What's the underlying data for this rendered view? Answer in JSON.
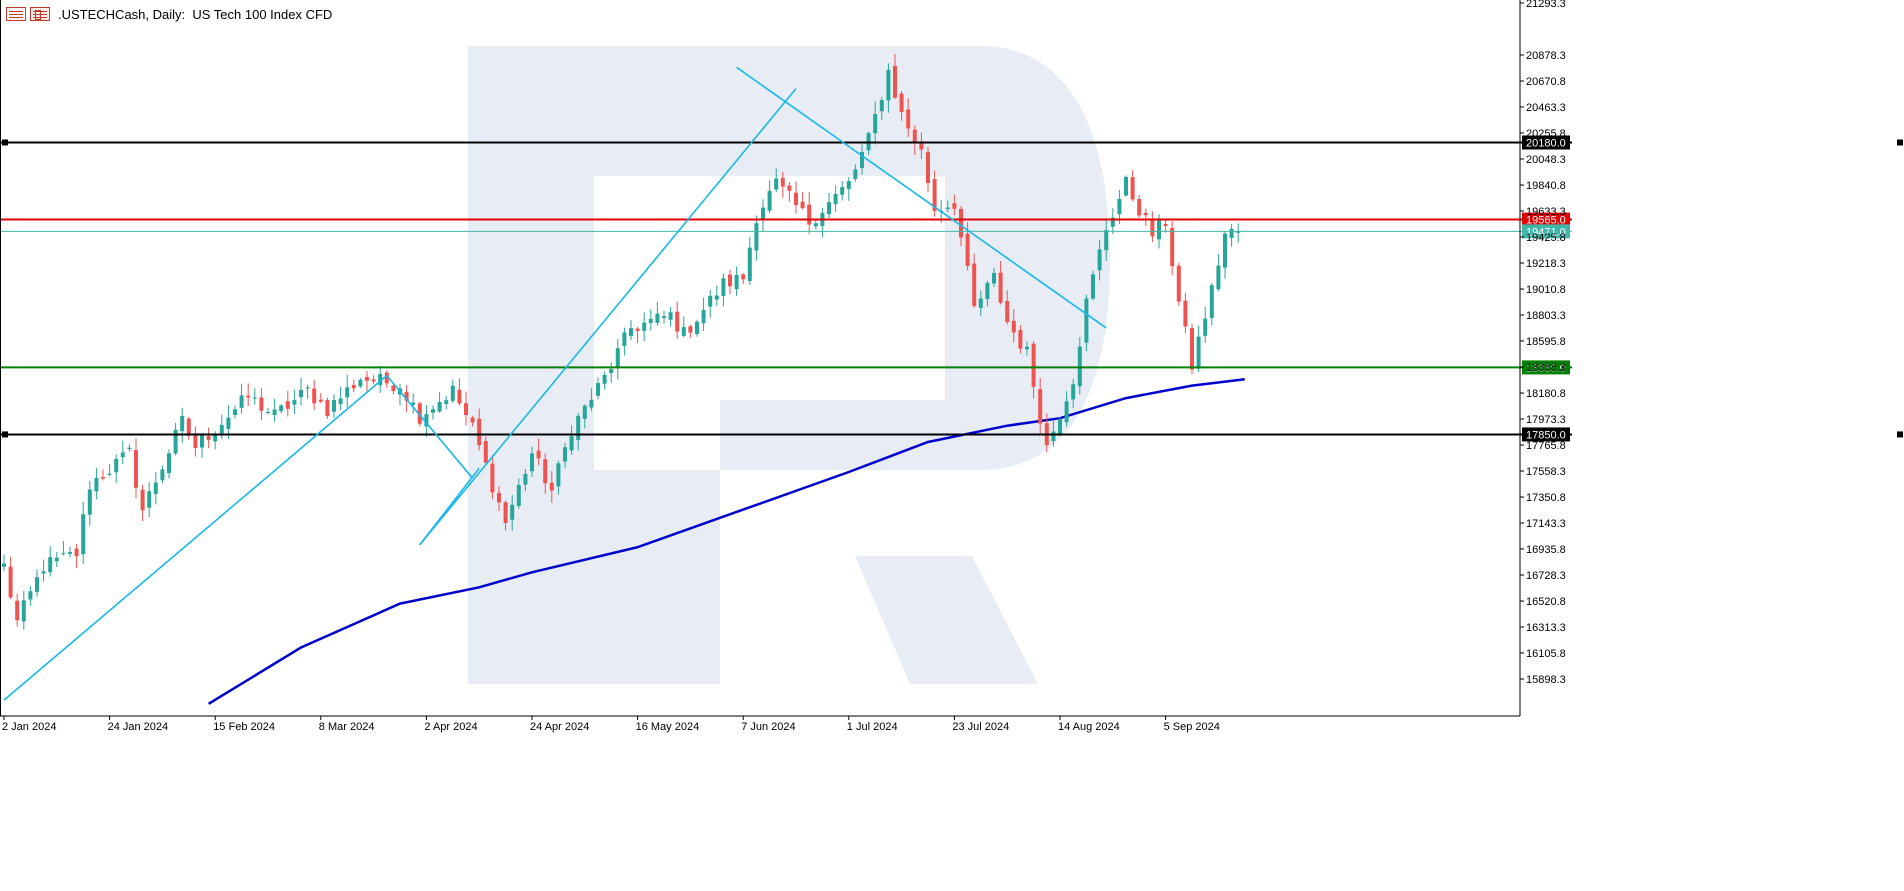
{
  "window": {
    "symbol": ".USTECHCash",
    "timeframe": "Daily",
    "description": "US Tech 100 Index CFD",
    "title": ".USTECHCash, Daily:  US Tech 100 Index CFD"
  },
  "icons": [
    "chart-list-icon",
    "chart-properties-icon"
  ],
  "colors": {
    "bull": "#26a69a",
    "bear": "#ef5350",
    "resistance_red": "#e00000",
    "support_green": "#008000",
    "black_level": "#000000",
    "trendline": "#16b8ef",
    "ma": "#0000cc",
    "current_price": "#3fb7a8",
    "watermark": "#e8edf5"
  },
  "chart_data": {
    "type": "candlestick",
    "title": ".USTECHCash, Daily:  US Tech 100 Index CFD",
    "xlabel": "",
    "ylabel": "",
    "ylim": [
      15700,
      21300
    ],
    "grid": false,
    "y_ticks": [
      "21293.3",
      "20878.3",
      "20670.8",
      "20463.3",
      "20255.8",
      "20048.3",
      "19840.8",
      "19633.3",
      "19425.8",
      "19218.3",
      "19010.8",
      "18803.3",
      "18595.8",
      "18388.3",
      "18180.8",
      "17973.3",
      "17765.8",
      "17558.3",
      "17350.8",
      "17143.3",
      "16935.8",
      "16728.3",
      "16520.8",
      "16313.3",
      "16105.8",
      "15898.3"
    ],
    "x_labels": [
      {
        "label": "2 Jan 2024",
        "index": 0
      },
      {
        "label": "24 Jan 2024",
        "index": 16
      },
      {
        "label": "15 Feb 2024",
        "index": 32
      },
      {
        "label": "8 Mar 2024",
        "index": 48
      },
      {
        "label": "2 Apr 2024",
        "index": 64
      },
      {
        "label": "24 Apr 2024",
        "index": 80
      },
      {
        "label": "16 May 2024",
        "index": 96
      },
      {
        "label": "7 Jun 2024",
        "index": 112
      },
      {
        "label": "1 Jul 2024",
        "index": 128
      },
      {
        "label": "23 Jul 2024",
        "index": 144
      },
      {
        "label": "14 Aug 2024",
        "index": 160
      },
      {
        "label": "5 Sep 2024",
        "index": 176
      }
    ],
    "candle_count": 188,
    "anchors": [
      {
        "index": 0,
        "price": 16800
      },
      {
        "index": 2,
        "price": 16350
      },
      {
        "index": 6,
        "price": 16800
      },
      {
        "index": 11,
        "price": 16900
      },
      {
        "index": 13,
        "price": 17450
      },
      {
        "index": 19,
        "price": 17700
      },
      {
        "index": 21,
        "price": 17250
      },
      {
        "index": 27,
        "price": 17950
      },
      {
        "index": 29,
        "price": 17750
      },
      {
        "index": 37,
        "price": 18150
      },
      {
        "index": 41,
        "price": 18000
      },
      {
        "index": 46,
        "price": 18200
      },
      {
        "index": 49,
        "price": 18050
      },
      {
        "index": 54,
        "price": 18300
      },
      {
        "index": 60,
        "price": 18250
      },
      {
        "index": 63,
        "price": 18000
      },
      {
        "index": 68,
        "price": 18200
      },
      {
        "index": 71,
        "price": 17900
      },
      {
        "index": 74,
        "price": 17450
      },
      {
        "index": 76,
        "price": 17150
      },
      {
        "index": 80,
        "price": 17700
      },
      {
        "index": 83,
        "price": 17400
      },
      {
        "index": 86,
        "price": 17900
      },
      {
        "index": 91,
        "price": 18300
      },
      {
        "index": 95,
        "price": 18700
      },
      {
        "index": 101,
        "price": 18800
      },
      {
        "index": 103,
        "price": 18650
      },
      {
        "index": 109,
        "price": 19050
      },
      {
        "index": 112,
        "price": 19100
      },
      {
        "index": 114,
        "price": 19600
      },
      {
        "index": 117,
        "price": 19850
      },
      {
        "index": 122,
        "price": 19550
      },
      {
        "index": 128,
        "price": 19850
      },
      {
        "index": 131,
        "price": 20200
      },
      {
        "index": 134,
        "price": 20750
      },
      {
        "index": 136,
        "price": 20400
      },
      {
        "index": 139,
        "price": 20100
      },
      {
        "index": 141,
        "price": 19650
      },
      {
        "index": 144,
        "price": 19700
      },
      {
        "index": 147,
        "price": 18850
      },
      {
        "index": 150,
        "price": 19100
      },
      {
        "index": 152,
        "price": 18750
      },
      {
        "index": 155,
        "price": 18500
      },
      {
        "index": 158,
        "price": 17750
      },
      {
        "index": 162,
        "price": 18300
      },
      {
        "index": 164,
        "price": 18900
      },
      {
        "index": 167,
        "price": 19500
      },
      {
        "index": 170,
        "price": 19850
      },
      {
        "index": 174,
        "price": 19450
      },
      {
        "index": 176,
        "price": 19550
      },
      {
        "index": 178,
        "price": 18900
      },
      {
        "index": 180,
        "price": 18400
      },
      {
        "index": 183,
        "price": 19000
      },
      {
        "index": 185,
        "price": 19450
      },
      {
        "index": 187,
        "price": 19471
      }
    ],
    "moving_average": [
      {
        "index": 31,
        "price": 15700
      },
      {
        "index": 45,
        "price": 16150
      },
      {
        "index": 60,
        "price": 16500
      },
      {
        "index": 72,
        "price": 16630
      },
      {
        "index": 80,
        "price": 16750
      },
      {
        "index": 96,
        "price": 16950
      },
      {
        "index": 112,
        "price": 17250
      },
      {
        "index": 128,
        "price": 17550
      },
      {
        "index": 140,
        "price": 17790
      },
      {
        "index": 152,
        "price": 17920
      },
      {
        "index": 160,
        "price": 17980
      },
      {
        "index": 170,
        "price": 18140
      },
      {
        "index": 180,
        "price": 18240
      },
      {
        "index": 188,
        "price": 18290
      }
    ],
    "horizontal_levels": [
      {
        "name": "black-top",
        "price": 20180.0,
        "label": "20180.0",
        "color": "#000000",
        "current": false
      },
      {
        "name": "red-resistance",
        "price": 19565.0,
        "label": "19565.0",
        "color": "#e00000",
        "current": false
      },
      {
        "name": "current-price",
        "price": 19471.0,
        "label": "19471.0",
        "color": "#3fb7a8",
        "current": true
      },
      {
        "name": "green-support",
        "price": 18385.0,
        "label": "18385.0",
        "color": "#008000",
        "current": false
      },
      {
        "name": "black-bottom",
        "price": 17850.0,
        "label": "17850.0",
        "color": "#000000",
        "current": false
      }
    ],
    "trendlines": [
      {
        "from": {
          "index": 0,
          "price": 15730
        },
        "to": {
          "index": 58,
          "price": 18320
        }
      },
      {
        "from": {
          "index": 58,
          "price": 18320
        },
        "to": {
          "index": 71,
          "price": 17500
        }
      },
      {
        "from": {
          "index": 63,
          "price": 16970
        },
        "to": {
          "index": 120,
          "price": 20610
        }
      },
      {
        "from": {
          "index": 111,
          "price": 20780
        },
        "to": {
          "index": 167,
          "price": 18700
        }
      },
      {
        "from": {
          "index": 63,
          "price": 16970
        },
        "to": {
          "index": 72,
          "price": 17580
        }
      }
    ],
    "watermark": "R"
  }
}
